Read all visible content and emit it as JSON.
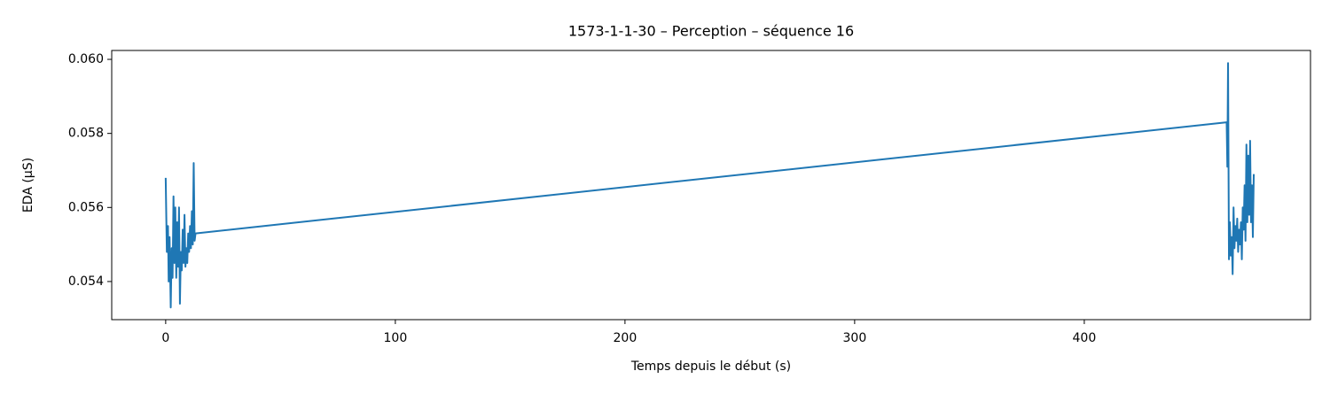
{
  "chart_data": {
    "type": "line",
    "title": "1573-1-1-30 – Perception – séquence 16",
    "x_label": "Temps depuis le début (s)",
    "y_label": "EDA (µS)",
    "x": [
      0,
      0.5,
      1,
      1.3,
      1.7,
      2.2,
      2.6,
      3,
      3.4,
      3.8,
      4.2,
      4.6,
      5,
      5.4,
      5.8,
      6.2,
      6.6,
      7,
      7.4,
      7.8,
      8.2,
      8.6,
      9,
      9.4,
      9.8,
      10.2,
      10.6,
      11,
      11.4,
      11.8,
      12.2,
      12.6,
      13,
      462,
      462.3,
      462.6,
      463,
      463.4,
      463.8,
      464.2,
      464.6,
      465,
      465.4,
      465.8,
      466.2,
      466.6,
      467,
      467.4,
      467.8,
      468.2,
      468.6,
      469,
      469.4,
      469.8,
      470.2,
      470.6,
      471,
      471.4,
      471.8,
      472.2,
      472.6,
      473,
      473.4,
      473.8
    ],
    "series": [
      {
        "name": "EDA",
        "color": "#1f77b4",
        "values": [
          0.0568,
          0.0548,
          0.0555,
          0.054,
          0.0552,
          0.0533,
          0.0549,
          0.0541,
          0.0563,
          0.0545,
          0.056,
          0.0541,
          0.0556,
          0.0544,
          0.056,
          0.0534,
          0.0548,
          0.0543,
          0.0554,
          0.0545,
          0.0558,
          0.0544,
          0.0549,
          0.0545,
          0.0553,
          0.0548,
          0.0555,
          0.0549,
          0.0559,
          0.055,
          0.0572,
          0.0551,
          0.0553,
          0.0583,
          0.0571,
          0.0599,
          0.0546,
          0.0556,
          0.0547,
          0.0552,
          0.0542,
          0.056,
          0.0549,
          0.0555,
          0.0551,
          0.0557,
          0.0548,
          0.0554,
          0.055,
          0.0556,
          0.0546,
          0.056,
          0.0554,
          0.0566,
          0.0551,
          0.0577,
          0.0556,
          0.0574,
          0.0558,
          0.0578,
          0.0556,
          0.0566,
          0.0552,
          0.0569
        ]
      }
    ],
    "xlim": [
      -23.5,
      498.5
    ],
    "xticks": [
      0,
      100,
      200,
      300,
      400
    ],
    "ylim": [
      0.05297,
      0.06024
    ],
    "yticks": [
      0.054,
      0.056,
      0.058,
      {
        "value": 0.06,
        "label": "0.060"
      }
    ]
  }
}
